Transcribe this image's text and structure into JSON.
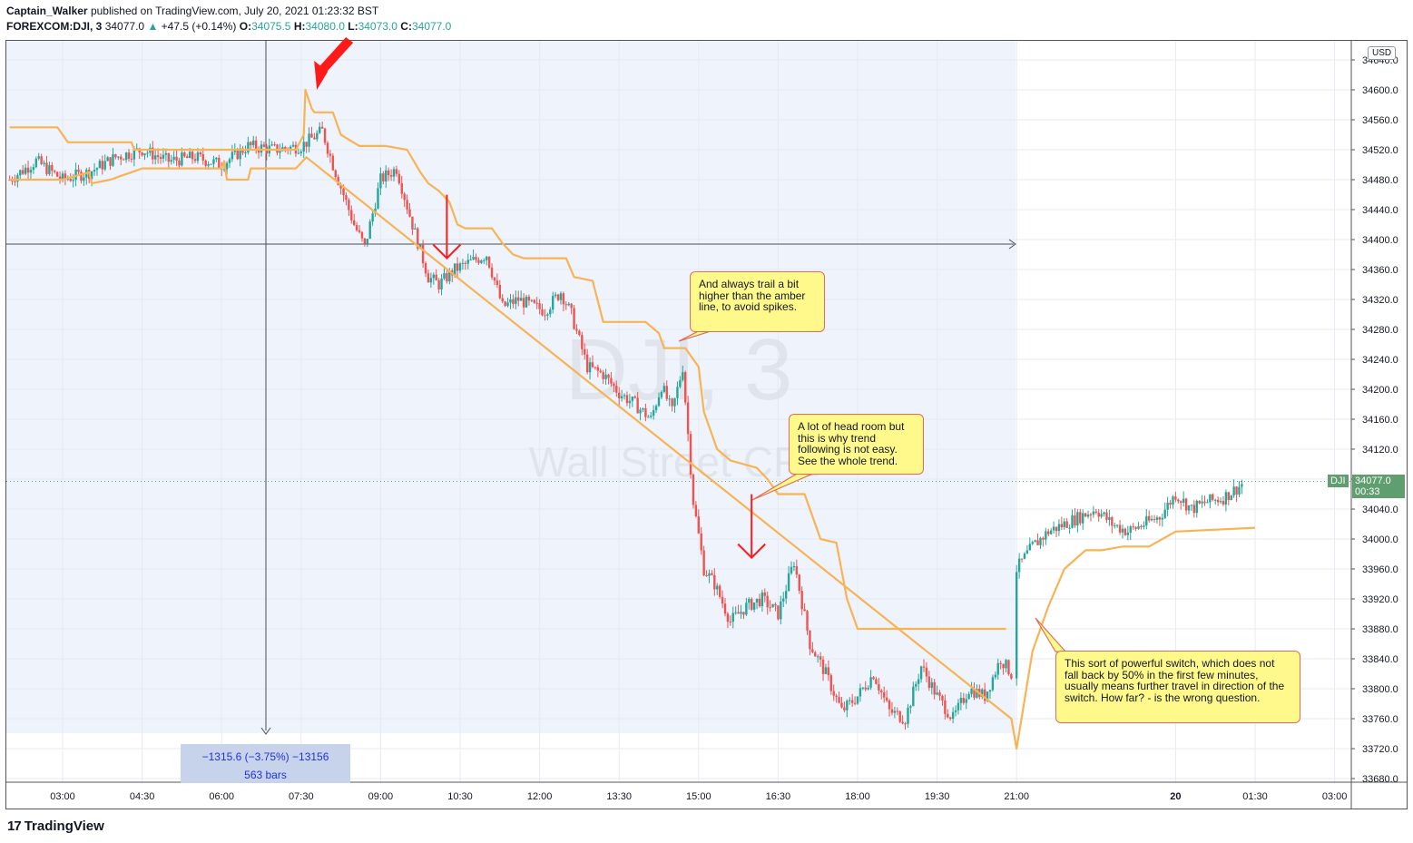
{
  "header": {
    "author": "Captain_Walker",
    "published": "published on TradingView.com, July 20, 2021 01:23:32 BST",
    "symbol": "FOREXCOM:DJI, 3",
    "last": "34077.0",
    "change": "+47.5 (+0.14%)",
    "o_label": "O:",
    "o_value": "34075.5",
    "h_label": "H:",
    "h_value": "34080.0",
    "l_label": "L:",
    "l_value": "34073.0",
    "c_label": "C:",
    "c_value": "34077.0"
  },
  "watermark": {
    "symbol": "DJI, 3",
    "name": "Wall Street CFD"
  },
  "currency": "USD",
  "last_price_tag": {
    "symbol": "DJI",
    "price": "34077.0",
    "countdown": "00:33"
  },
  "measure": {
    "change": "−1315.6 (−3.75%) −13156",
    "bars": "563 bars"
  },
  "notes": [
    "And always trail a bit higher than the amber line, to avoid spikes.",
    "A lot of head room but this is why trend following is not easy. See the whole trend.",
    "This sort of powerful switch, which does not fall back by 50% in the first few minutes, usually means further travel in direction of the switch. How far? - is the wrong question."
  ],
  "brand": "TradingView",
  "colors": {
    "up": "#26a69a",
    "down": "#ef5350",
    "amber": "#f8b454",
    "arrow": "#ff1a1a",
    "shade": "#eef3fc"
  },
  "chart_data": {
    "type": "line",
    "title": "",
    "ylim": [
      33660,
      34660
    ],
    "yticks": [
      34640,
      34600,
      34560,
      34520,
      34480,
      34440,
      34400,
      34360,
      34320,
      34280,
      34240,
      34200,
      34160,
      34120,
      34080,
      34040,
      34000,
      33960,
      33920,
      33880,
      33840,
      33800,
      33760,
      33720,
      33680
    ],
    "xticks": [
      "03:00",
      "04:30",
      "06:00",
      "07:30",
      "09:00",
      "10:30",
      "12:00",
      "13:30",
      "15:00",
      "16:30",
      "18:00",
      "19:30",
      "21:00",
      "20",
      "01:30",
      "03:00"
    ],
    "x_hours": [
      3.0,
      4.5,
      6.0,
      7.5,
      9.0,
      10.5,
      12.0,
      13.5,
      15.0,
      16.5,
      18.0,
      19.5,
      21.0,
      24.0,
      25.5,
      27.0
    ],
    "series": [
      {
        "kind": "price",
        "x": [
          2.0,
          2.5,
          3.0,
          3.5,
          4.0,
          4.5,
          5.0,
          5.5,
          6.0,
          6.5,
          7.0,
          7.5,
          7.9,
          8.1,
          8.3,
          8.5,
          8.7,
          9.0,
          9.3,
          9.6,
          9.9,
          10.1,
          10.4,
          10.7,
          11.0,
          11.3,
          11.6,
          11.9,
          12.1,
          12.4,
          12.6,
          12.9,
          13.2,
          13.5,
          13.8,
          14.1,
          14.3,
          14.5,
          14.7,
          14.9,
          15.1,
          15.3,
          15.6,
          15.9,
          16.2,
          16.5,
          16.8,
          17.1,
          17.4,
          17.7,
          18.0,
          18.3,
          18.6,
          18.9,
          19.2,
          19.5,
          19.8,
          20.1,
          20.4,
          20.7,
          20.9,
          21.0,
          21.3,
          21.6,
          21.9,
          22.2,
          22.5,
          22.8,
          23.1,
          23.4,
          23.7,
          24.0,
          24.3,
          24.6,
          24.9,
          25.2,
          25.3
        ],
        "values": [
          34480,
          34505,
          34480,
          34490,
          34510,
          34520,
          34505,
          34510,
          34500,
          34525,
          34520,
          34525,
          34545,
          34500,
          34460,
          34420,
          34390,
          34480,
          34495,
          34420,
          34350,
          34340,
          34360,
          34370,
          34380,
          34310,
          34320,
          34310,
          34305,
          34330,
          34300,
          34230,
          34220,
          34195,
          34180,
          34160,
          34205,
          34170,
          34230,
          34050,
          33960,
          33940,
          33890,
          33910,
          33920,
          33900,
          33970,
          33860,
          33820,
          33770,
          33790,
          33820,
          33770,
          33760,
          33830,
          33790,
          33760,
          33800,
          33790,
          33840,
          33820,
          33960,
          33990,
          34010,
          34020,
          34030,
          34040,
          34020,
          34010,
          34020,
          34030,
          34060,
          34040,
          34050,
          34055,
          34070,
          34077
        ]
      },
      {
        "kind": "amber-line",
        "x": [
          2.0,
          2.9,
          3.1,
          4.3,
          4.35,
          4.7,
          4.75,
          7.4,
          7.55,
          7.58,
          7.7,
          7.75,
          8.1,
          8.25,
          8.6,
          9.1,
          9.5,
          9.75,
          9.9,
          10.1,
          10.3,
          10.45,
          10.6,
          11.1,
          11.3,
          11.5,
          11.7,
          12.5,
          12.65,
          13.0,
          13.2,
          14.0,
          14.25,
          14.35,
          14.75,
          15.0,
          15.1,
          15.35,
          15.6,
          16.1,
          16.3,
          16.5,
          17.0,
          17.3,
          17.6,
          17.8,
          18.0,
          20.8
        ],
        "values": [
          34550,
          34550,
          34530,
          34530,
          34520,
          34520,
          34520,
          34520,
          34540,
          34600,
          34575,
          34570,
          34570,
          34540,
          34525,
          34525,
          34520,
          34490,
          34475,
          34465,
          34450,
          34420,
          34415,
          34415,
          34395,
          34380,
          34375,
          34375,
          34350,
          34345,
          34290,
          34290,
          34275,
          34255,
          34255,
          34230,
          34170,
          34120,
          34105,
          34095,
          34080,
          34060,
          34060,
          34000,
          33995,
          33920,
          33880,
          33880
        ]
      },
      {
        "kind": "amber-line",
        "x": [
          2.0,
          3.0,
          3.5,
          3.55,
          3.9,
          4.3,
          4.5,
          6.0,
          6.05,
          6.1,
          6.5,
          6.55,
          7.4,
          7.6,
          20.9,
          21.0,
          21.3,
          21.6,
          21.9,
          22.3,
          22.6,
          23.0,
          23.5,
          24.0,
          25.5
        ],
        "values": [
          34480,
          34480,
          34490,
          34475,
          34480,
          34490,
          34495,
          34495,
          34505,
          34480,
          34480,
          34495,
          34495,
          34510,
          33760,
          33720,
          33850,
          33910,
          33960,
          33985,
          33985,
          33990,
          33990,
          34010,
          34015
        ]
      }
    ],
    "annotations": [
      {
        "type": "arrow-down",
        "x": 7.9,
        "y": 34600
      },
      {
        "type": "arrow-down",
        "x": 10.25,
        "y": 34375
      },
      {
        "type": "arrow-down",
        "x": 16.0,
        "y": 33975
      }
    ]
  }
}
